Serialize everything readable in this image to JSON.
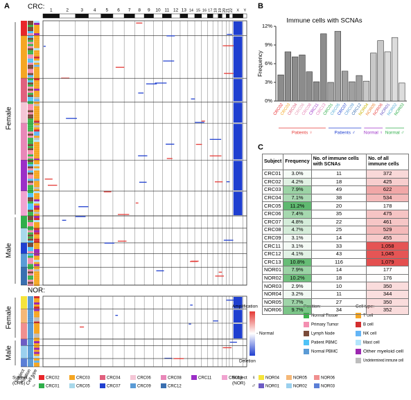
{
  "panel_a": {
    "label": "A",
    "crc_label": "CRC:",
    "nor_label": "NOR:",
    "chromosomes": [
      "1",
      "2",
      "3",
      "4",
      "5",
      "6",
      "7",
      "8",
      "9",
      "10",
      "11",
      "12",
      "13",
      "14",
      "15",
      "16",
      "17",
      "18",
      "19",
      "20",
      "21",
      "22",
      "X",
      "Y"
    ],
    "female_label": "Female",
    "male_label": "Male",
    "strip_labels": [
      "Subject",
      "Position",
      "Cell type"
    ],
    "scale_legend": {
      "amplification": "Amplification",
      "normal": "- Normal",
      "deletion": "Deletion"
    },
    "position_legend": {
      "title": "Position:",
      "items": [
        {
          "name": "Normal Tissue",
          "color": "#3cb44b"
        },
        {
          "name": "Primary Tumor",
          "color": "#f48fb1"
        },
        {
          "name": "Lymph Node",
          "color": "#7a4b3a"
        },
        {
          "name": "Patient PBMC",
          "color": "#4fc3f7"
        },
        {
          "name": "Normal PBMC",
          "color": "#5b9bd5"
        }
      ]
    },
    "celltype_legend": {
      "title": "Cell type:",
      "items": [
        {
          "name": "T cell",
          "color": "#f5a623"
        },
        {
          "name": "B cell",
          "color": "#d32f2f"
        },
        {
          "name": "NK cell",
          "color": "#64b5f6"
        },
        {
          "name": "Mast cell",
          "color": "#b3e5fc"
        },
        {
          "name": "Other myeloid cell",
          "color": "#9c27b0"
        },
        {
          "name": "Undetermined immune cell",
          "color": "#bdbdbd"
        }
      ]
    },
    "female_symbol": "♀",
    "male_symbol": "♂",
    "crc_subject_legend": {
      "title": [
        "Subject",
        "(CRC)"
      ],
      "female": [
        {
          "name": "CRC02",
          "color": "#e8262a"
        },
        {
          "name": "CRC03",
          "color": "#f5a623"
        },
        {
          "name": "CRC04",
          "color": "#e0607e"
        },
        {
          "name": "CRC06",
          "color": "#f4c6d6"
        },
        {
          "name": "CRC08",
          "color": "#e887b8"
        },
        {
          "name": "CRC11",
          "color": "#9b2fc7"
        },
        {
          "name": "CRC13",
          "color": "#f0a3d0"
        }
      ],
      "male": [
        {
          "name": "CRC01",
          "color": "#2fae4a"
        },
        {
          "name": "CRC05",
          "color": "#a8d8ea"
        },
        {
          "name": "CRC07",
          "color": "#1f3fd0"
        },
        {
          "name": "CRC09",
          "color": "#5a9bd6"
        },
        {
          "name": "CRC12",
          "color": "#3a6fb0"
        }
      ]
    },
    "nor_subject_legend": {
      "title": [
        "Subject",
        "(NOR)"
      ],
      "female": [
        {
          "name": "NOR04",
          "color": "#f5e43a"
        },
        {
          "name": "NOR05",
          "color": "#f5b878"
        },
        {
          "name": "NOR06",
          "color": "#f09090"
        }
      ],
      "male": [
        {
          "name": "NOR01",
          "color": "#6d5bc4"
        },
        {
          "name": "NOR02",
          "color": "#9ad0ee"
        },
        {
          "name": "NOR03",
          "color": "#5b7fd6"
        }
      ]
    }
  },
  "chart_data": {
    "type": "bar",
    "label": "B",
    "title": "Immune cells with SCNAs",
    "ylabel": "Frequency",
    "ylim": [
      0,
      12
    ],
    "yticks": [
      {
        "value": 0,
        "label": "0%"
      },
      {
        "value": 3,
        "label": "3%"
      },
      {
        "value": 6,
        "label": "6%"
      },
      {
        "value": 9,
        "label": "9%"
      },
      {
        "value": 12,
        "label": "12%"
      }
    ],
    "groups": [
      {
        "name": "Patients ♀",
        "color": "#e53935",
        "bar_color": "#8c8c8c",
        "categories": [
          "CRC02",
          "CRC03",
          "CRC04",
          "CRC06",
          "CRC08",
          "CRC11",
          "CRC13"
        ],
        "category_colors": [
          "#e8262a",
          "#f5a623",
          "#e0607e",
          "#e8a0b8",
          "#e887b8",
          "#9b2fc7",
          "#e07ab8"
        ],
        "values": [
          4.2,
          7.9,
          7.1,
          7.4,
          4.7,
          3.1,
          10.8
        ]
      },
      {
        "name": "Patients ♂",
        "color": "#1f3fd0",
        "bar_color": "#a0a0a0",
        "categories": [
          "CRC01",
          "CRC05",
          "CRC07",
          "CRC09",
          "CRC12"
        ],
        "category_colors": [
          "#2fae4a",
          "#5ab0d8",
          "#1f3fd0",
          "#5a9bd6",
          "#3a6fb0"
        ],
        "values": [
          3.0,
          11.2,
          4.8,
          3.1,
          4.1
        ]
      },
      {
        "name": "Normal ♀",
        "color": "#9b2fc7",
        "bar_color": "#c8c8c8",
        "categories": [
          "NOR04",
          "NOR05",
          "NOR06"
        ],
        "category_colors": [
          "#c8b400",
          "#f08a3a",
          "#e85050"
        ],
        "values": [
          3.2,
          7.7,
          9.7
        ]
      },
      {
        "name": "Normal ♂",
        "color": "#2fae4a",
        "bar_color": "#dcdcdc",
        "categories": [
          "NOR01",
          "NOR02",
          "NOR03"
        ],
        "category_colors": [
          "#6d5bc4",
          "#5ab0d8",
          "#2fae4a"
        ],
        "values": [
          7.9,
          10.2,
          2.9
        ]
      }
    ]
  },
  "table": {
    "label": "C",
    "header": [
      "Subject",
      "Frequency",
      "No. of immune cells with SCNAs",
      "No. of all immune cells"
    ],
    "rows": [
      [
        "CRC01",
        "3.0%",
        "11",
        "372"
      ],
      [
        "CRC02",
        "4.2%",
        "18",
        "425"
      ],
      [
        "CRC03",
        "7.9%",
        "49",
        "622"
      ],
      [
        "CRC04",
        "7.1%",
        "38",
        "534"
      ],
      [
        "CRC05",
        "11.2%",
        "20",
        "178"
      ],
      [
        "CRC06",
        "7.4%",
        "35",
        "475"
      ],
      [
        "CRC07",
        "4.8%",
        "22",
        "461"
      ],
      [
        "CRC08",
        "4.7%",
        "25",
        "529"
      ],
      [
        "CRC09",
        "3.1%",
        "14",
        "455"
      ],
      [
        "CRC11",
        "3.1%",
        "33",
        "1,058"
      ],
      [
        "CRC12",
        "4.1%",
        "43",
        "1,045"
      ],
      [
        "CRC13",
        "10.8%",
        "116",
        "1,079"
      ],
      [
        "NOR01",
        "7.9%",
        "14",
        "177"
      ],
      [
        "NOR02",
        "10.2%",
        "18",
        "176"
      ],
      [
        "NOR03",
        "2.9%",
        "10",
        "350"
      ],
      [
        "NOR04",
        "3.2%",
        "11",
        "344"
      ],
      [
        "NOR05",
        "7.7%",
        "27",
        "350"
      ],
      [
        "NOR06",
        "9.7%",
        "34",
        "352"
      ]
    ]
  }
}
